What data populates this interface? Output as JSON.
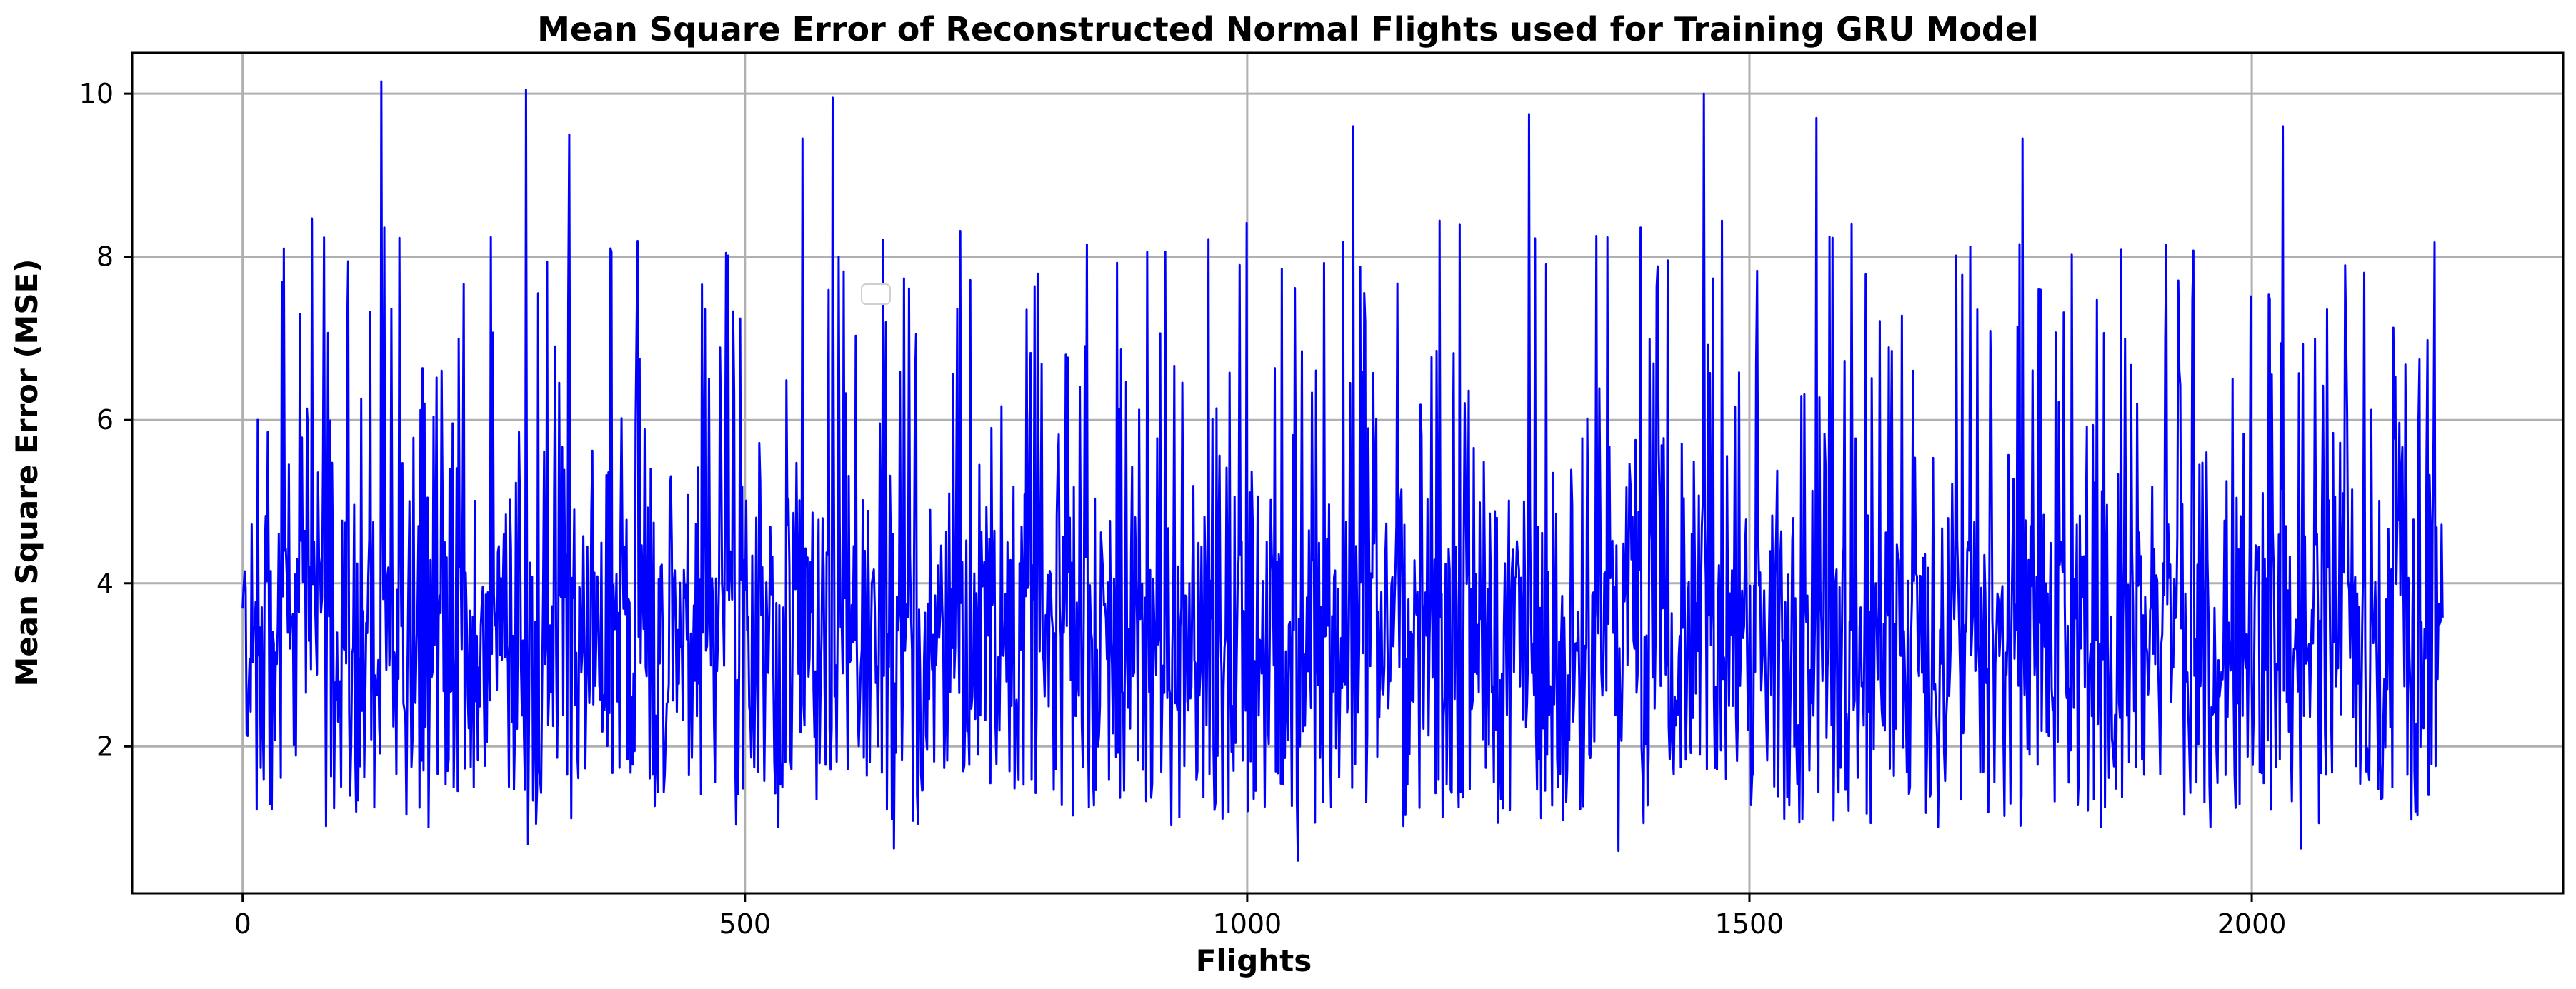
{
  "chart_data": {
    "type": "line",
    "title": "Mean Square Error of Reconstructed Normal Flights used for Training GRU Model",
    "xlabel": "Flights",
    "ylabel": "Mean Square Error (MSE)",
    "xlim": [
      -110,
      2310
    ],
    "ylim": [
      0.2,
      10.5
    ],
    "xticks": [
      0,
      500,
      1000,
      1500,
      2000
    ],
    "yticks": [
      2,
      4,
      6,
      8,
      10
    ],
    "grid": true,
    "legend": "empty box near top-center",
    "series": [
      {
        "color": "#0000ff",
        "n_points": 2190,
        "x_range": [
          0,
          2190
        ],
        "seed": 12345,
        "baseline_mean": 3.3,
        "peaks": [
          {
            "x": 138,
            "y": 10.15
          },
          {
            "x": 282,
            "y": 10.05
          },
          {
            "x": 587,
            "y": 9.95
          },
          {
            "x": 1454,
            "y": 10.0
          },
          {
            "x": 325,
            "y": 9.5
          },
          {
            "x": 1280,
            "y": 9.75
          },
          {
            "x": 1566,
            "y": 9.7
          },
          {
            "x": 2030,
            "y": 9.6
          },
          {
            "x": 557,
            "y": 9.45
          },
          {
            "x": 1105,
            "y": 9.6
          },
          {
            "x": 1771,
            "y": 9.45
          },
          {
            "x": 1050,
            "y": 0.6
          },
          {
            "x": 648,
            "y": 0.75
          },
          {
            "x": 284,
            "y": 0.8
          },
          {
            "x": 1369,
            "y": 0.72
          },
          {
            "x": 2048,
            "y": 0.75
          }
        ]
      }
    ]
  }
}
